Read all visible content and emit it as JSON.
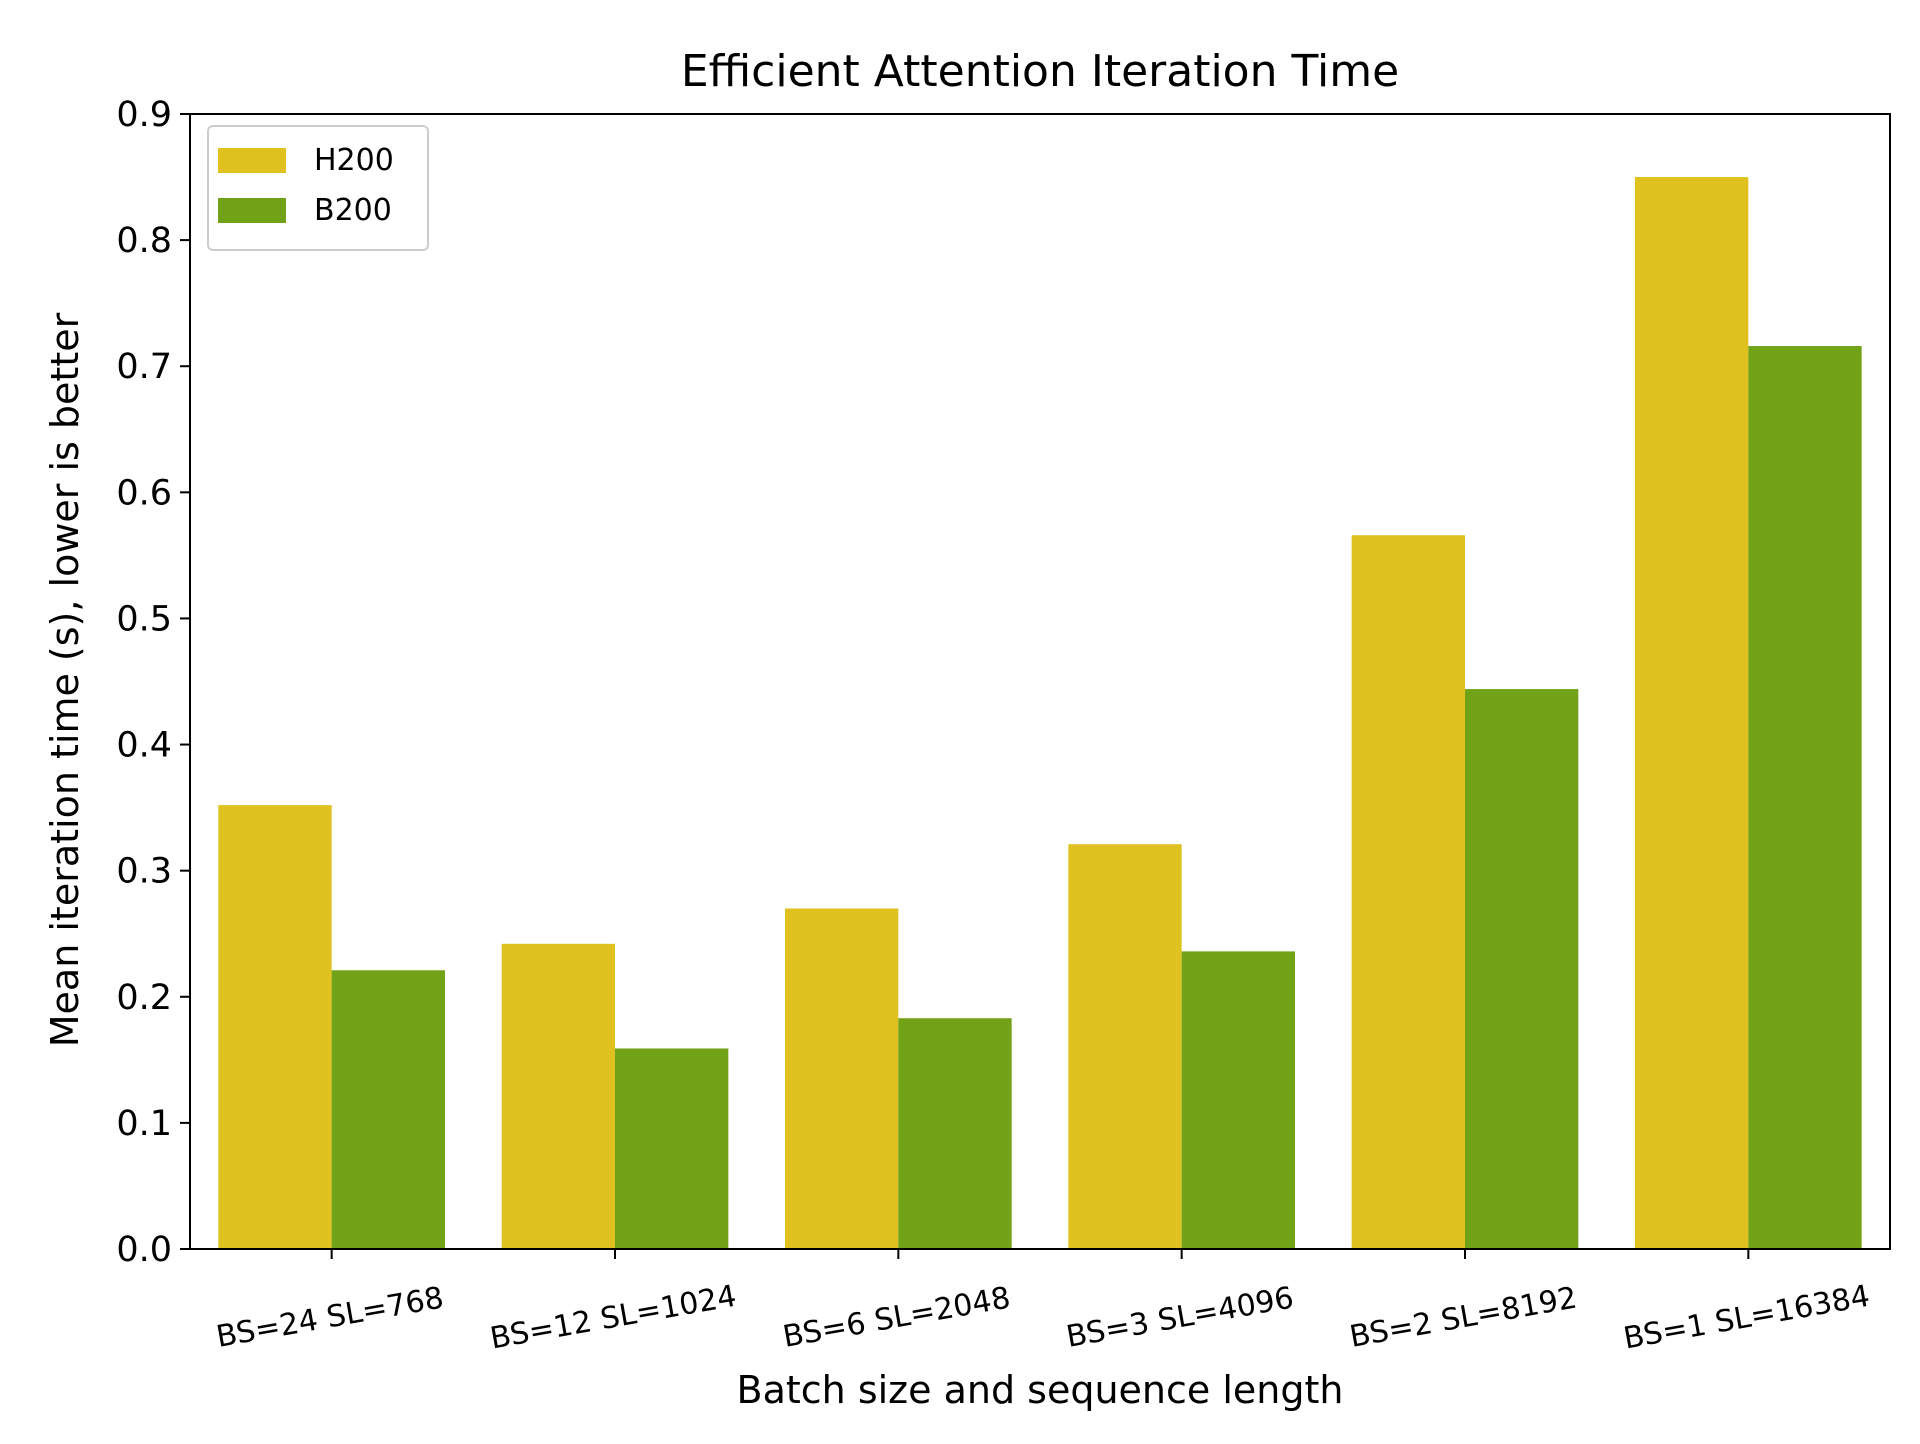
{
  "chart_data": {
    "type": "bar",
    "title": "Efficient Attention Iteration Time",
    "xlabel": "Batch size and sequence length",
    "ylabel": "Mean iteration time (s), lower is better",
    "categories": [
      "BS=24 SL=768",
      "BS=12 SL=1024",
      "BS=6 SL=2048",
      "BS=3 SL=4096",
      "BS=2 SL=8192",
      "BS=1 SL=16384"
    ],
    "series": [
      {
        "name": "H200",
        "color": "#dfc220",
        "values": [
          0.352,
          0.242,
          0.27,
          0.321,
          0.566,
          0.85
        ]
      },
      {
        "name": "B200",
        "color": "#71a218",
        "values": [
          0.221,
          0.159,
          0.183,
          0.236,
          0.444,
          0.716
        ]
      }
    ],
    "ylim": [
      0,
      0.9
    ],
    "yticks": [
      "0.0",
      "0.1",
      "0.2",
      "0.3",
      "0.4",
      "0.5",
      "0.6",
      "0.7",
      "0.8",
      "0.9"
    ],
    "grid": false,
    "legend_position": "top-left"
  }
}
